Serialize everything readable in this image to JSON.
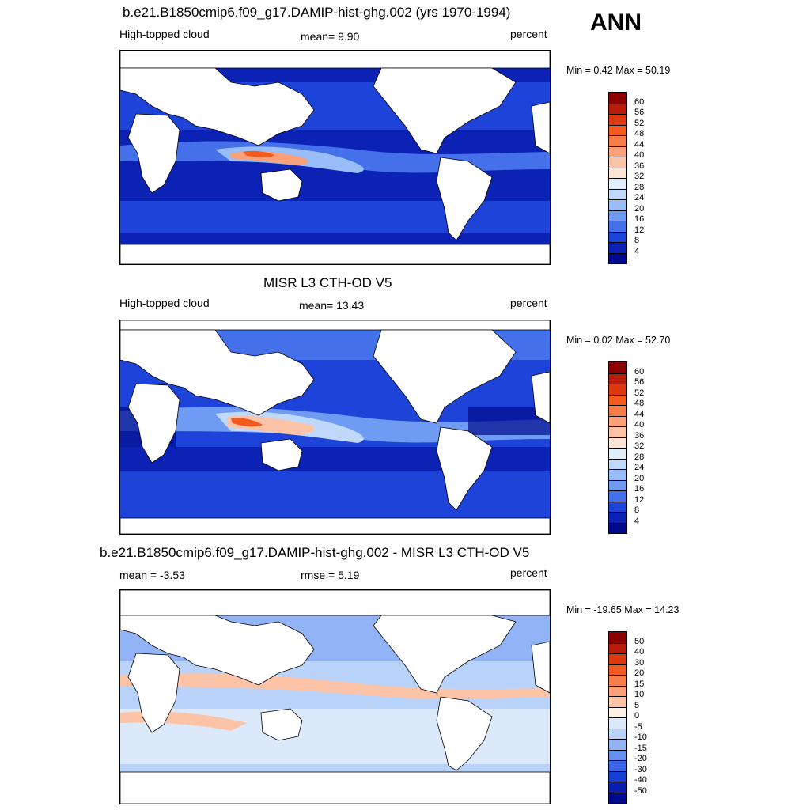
{
  "season": "ANN",
  "panels": [
    {
      "title": "b.e21.B1850cmip6.f09_g17.DAMIP-hist-ghg.002 (yrs 1970-1994)",
      "left": "High-topped cloud",
      "center": "mean=   9.90",
      "right": "percent",
      "minmax": "Min =   0.42 Max =  50.19",
      "colorbar": {
        "labels": [
          "60",
          "56",
          "52",
          "48",
          "44",
          "40",
          "36",
          "32",
          "28",
          "24",
          "20",
          "16",
          "12",
          "8",
          "4"
        ],
        "colors": [
          "#8b0000",
          "#b81d0c",
          "#dc3910",
          "#f25a1e",
          "#f77e4a",
          "#fba078",
          "#fdc3a6",
          "#fee4d2",
          "#e1eefc",
          "#c0d8fb",
          "#98bdf8",
          "#6f9bf2",
          "#4470ea",
          "#1e43d8",
          "#0b22b4",
          "#000a8c"
        ]
      }
    },
    {
      "title": "MISR L3 CTH-OD V5",
      "left": "High-topped cloud",
      "center": "mean=  13.43",
      "right": "percent",
      "minmax": "Min =   0.02 Max =  52.70",
      "colorbar": {
        "labels": [
          "60",
          "56",
          "52",
          "48",
          "44",
          "40",
          "36",
          "32",
          "28",
          "24",
          "20",
          "16",
          "12",
          "8",
          "4"
        ],
        "colors": [
          "#8b0000",
          "#b81d0c",
          "#dc3910",
          "#f25a1e",
          "#f77e4a",
          "#fba078",
          "#fdc3a6",
          "#fee4d2",
          "#e1eefc",
          "#c0d8fb",
          "#98bdf8",
          "#6f9bf2",
          "#4470ea",
          "#1e43d8",
          "#0b22b4",
          "#000a8c"
        ]
      }
    },
    {
      "title": "b.e21.B1850cmip6.f09_g17.DAMIP-hist-ghg.002 - MISR L3 CTH-OD V5",
      "left": "mean =  -3.53",
      "center": "rmse =    5.19",
      "right": "percent",
      "minmax": "Min = -19.65 Max =  14.23",
      "colorbar": {
        "labels": [
          "50",
          "40",
          "30",
          "20",
          "15",
          "10",
          "5",
          "0",
          "-5",
          "-10",
          "-15",
          "-20",
          "-30",
          "-40",
          "-50"
        ],
        "colors": [
          "#8b0000",
          "#b81d0c",
          "#dc3910",
          "#f25a1e",
          "#f77e4a",
          "#fba078",
          "#fdc3a6",
          "#fdf1e6",
          "#dbe9fb",
          "#b9d2fa",
          "#92b4f6",
          "#6690f0",
          "#3b66e6",
          "#1a3ed2",
          "#0a1fae",
          "#000a8c"
        ]
      }
    }
  ]
}
